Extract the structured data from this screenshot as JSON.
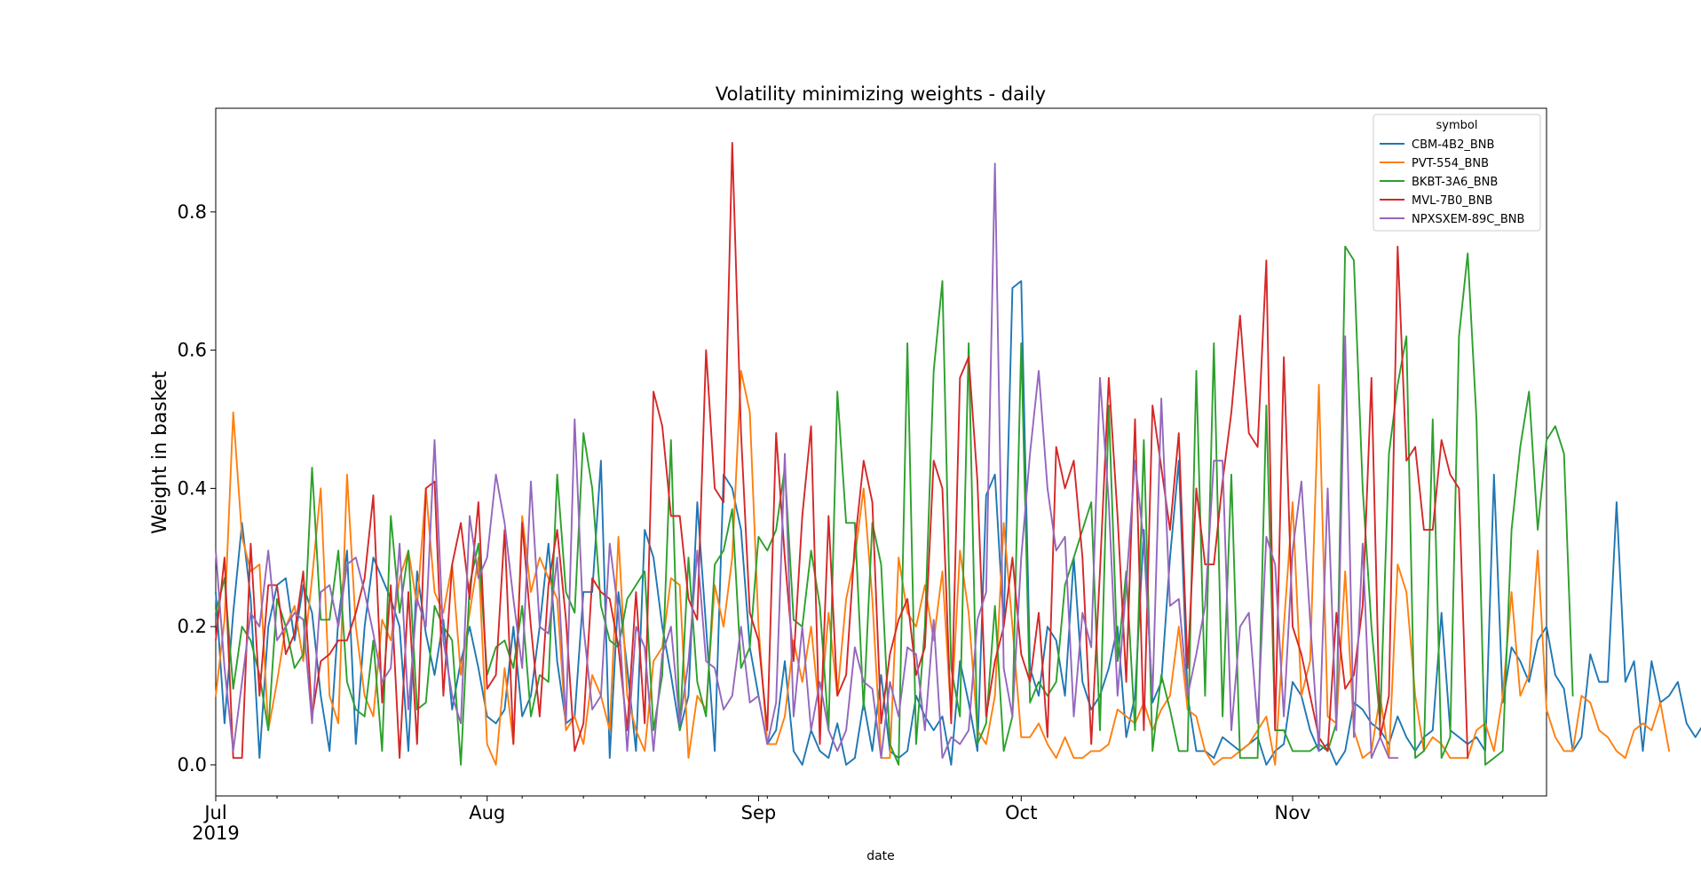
{
  "chart_data": {
    "type": "line",
    "title": "Volatility minimizing weights - daily",
    "xlabel": "date",
    "ylabel": "Weight in basket",
    "x_range": [
      "2019-07-01",
      "2019-11-30"
    ],
    "ylim": [
      -0.045,
      0.95
    ],
    "y_ticks": [
      0.0,
      0.2,
      0.4,
      0.6,
      0.8
    ],
    "y_tick_labels": [
      "0.0",
      "0.2",
      "0.4",
      "0.6",
      "0.8"
    ],
    "x_ticks": [
      "2019-07-01",
      "2019-08-01",
      "2019-09-01",
      "2019-10-01",
      "2019-11-01"
    ],
    "x_tick_labels": [
      "Jul",
      "Aug",
      "Sep",
      "Oct",
      "Nov"
    ],
    "x_tick_sublabel": "2019",
    "grid": false,
    "legend": {
      "title": "symbol",
      "placement": "top-right"
    },
    "series": [
      {
        "name": "CBM-4B2_BNB",
        "color": "#1f77b4",
        "start": "2019-07-01",
        "values": [
          0.25,
          0.06,
          0.22,
          0.35,
          0.24,
          0.01,
          0.2,
          0.26,
          0.27,
          0.18,
          0.26,
          0.22,
          0.1,
          0.02,
          0.21,
          0.31,
          0.03,
          0.2,
          0.3,
          0.27,
          0.24,
          0.2,
          0.02,
          0.28,
          0.19,
          0.13,
          0.21,
          0.08,
          0.15,
          0.2,
          0.14,
          0.07,
          0.06,
          0.08,
          0.2,
          0.07,
          0.1,
          0.2,
          0.32,
          0.15,
          0.06,
          0.07,
          0.25,
          0.25,
          0.44,
          0.01,
          0.25,
          0.14,
          0.02,
          0.34,
          0.3,
          0.2,
          0.13,
          0.05,
          0.1,
          0.38,
          0.2,
          0.02,
          0.42,
          0.4,
          0.34,
          0.17,
          0.1,
          0.03,
          0.05,
          0.15,
          0.02,
          0.0,
          0.05,
          0.02,
          0.01,
          0.06,
          0.0,
          0.01,
          0.09,
          0.02,
          0.13,
          0.02,
          0.01,
          0.02,
          0.1,
          0.07,
          0.05,
          0.07,
          0.0,
          0.15,
          0.09,
          0.02,
          0.39,
          0.42,
          0.2,
          0.69,
          0.7,
          0.14,
          0.1,
          0.2,
          0.18,
          0.1,
          0.3,
          0.12,
          0.08,
          0.1,
          0.14,
          0.2,
          0.04,
          0.1,
          0.34,
          0.09,
          0.12,
          0.3,
          0.44,
          0.1,
          0.02,
          0.02,
          0.01,
          0.04,
          0.03,
          0.02,
          0.03,
          0.04,
          0.0,
          0.02,
          0.03,
          0.12,
          0.1,
          0.05,
          0.02,
          0.03,
          0.0,
          0.02,
          0.09,
          0.08,
          0.06,
          0.05,
          0.03,
          0.07,
          0.04,
          0.02,
          0.04,
          0.05,
          0.22,
          0.05,
          0.04,
          0.03,
          0.04,
          0.02,
          0.42,
          0.09,
          0.17,
          0.15,
          0.12,
          0.18,
          0.2,
          0.13,
          0.11,
          0.02,
          0.04,
          0.16,
          0.12,
          0.12,
          0.38,
          0.12,
          0.15,
          0.02,
          0.15,
          0.09,
          0.1,
          0.12,
          0.06,
          0.04,
          0.06
        ]
      },
      {
        "name": "PVT-554_BNB",
        "color": "#ff7f0e",
        "start": "2019-07-01",
        "values": [
          0.1,
          0.21,
          0.51,
          0.33,
          0.28,
          0.29,
          0.05,
          0.12,
          0.2,
          0.23,
          0.15,
          0.27,
          0.4,
          0.1,
          0.06,
          0.42,
          0.2,
          0.1,
          0.07,
          0.21,
          0.18,
          0.27,
          0.31,
          0.23,
          0.4,
          0.25,
          0.22,
          0.29,
          0.13,
          0.22,
          0.3,
          0.03,
          0.0,
          0.14,
          0.03,
          0.36,
          0.25,
          0.3,
          0.27,
          0.24,
          0.05,
          0.07,
          0.03,
          0.13,
          0.1,
          0.05,
          0.33,
          0.1,
          0.05,
          0.02,
          0.15,
          0.17,
          0.27,
          0.26,
          0.01,
          0.1,
          0.08,
          0.26,
          0.2,
          0.3,
          0.57,
          0.51,
          0.2,
          0.03,
          0.03,
          0.07,
          0.18,
          0.12,
          0.2,
          0.07,
          0.22,
          0.1,
          0.24,
          0.3,
          0.4,
          0.24,
          0.01,
          0.01,
          0.3,
          0.22,
          0.2,
          0.26,
          0.18,
          0.28,
          0.07,
          0.31,
          0.22,
          0.05,
          0.03,
          0.1,
          0.35,
          0.2,
          0.04,
          0.04,
          0.06,
          0.03,
          0.01,
          0.04,
          0.01,
          0.01,
          0.02,
          0.02,
          0.03,
          0.08,
          0.07,
          0.06,
          0.09,
          0.05,
          0.08,
          0.1,
          0.2,
          0.08,
          0.07,
          0.02,
          0.0,
          0.01,
          0.01,
          0.02,
          0.03,
          0.05,
          0.07,
          0.0,
          0.2,
          0.38,
          0.1,
          0.15,
          0.55,
          0.07,
          0.06,
          0.28,
          0.05,
          0.01,
          0.02,
          0.1,
          0.01,
          0.29,
          0.25,
          0.1,
          0.02,
          0.04,
          0.03,
          0.01,
          0.01,
          0.01,
          0.05,
          0.06,
          0.02,
          0.1,
          0.25,
          0.1,
          0.13,
          0.31,
          0.08,
          0.04,
          0.02,
          0.02,
          0.1,
          0.09,
          0.05,
          0.04,
          0.02,
          0.01,
          0.05,
          0.06,
          0.05,
          0.09,
          0.02
        ]
      },
      {
        "name": "BKBT-3A6_BNB",
        "color": "#2ca02c",
        "start": "2019-07-01",
        "values": [
          0.22,
          0.27,
          0.11,
          0.2,
          0.18,
          0.13,
          0.05,
          0.24,
          0.2,
          0.14,
          0.16,
          0.43,
          0.21,
          0.21,
          0.31,
          0.12,
          0.08,
          0.07,
          0.18,
          0.02,
          0.36,
          0.22,
          0.31,
          0.08,
          0.09,
          0.23,
          0.2,
          0.18,
          0.0,
          0.26,
          0.32,
          0.13,
          0.17,
          0.18,
          0.14,
          0.23,
          0.07,
          0.13,
          0.12,
          0.42,
          0.25,
          0.22,
          0.48,
          0.4,
          0.23,
          0.18,
          0.17,
          0.24,
          0.26,
          0.28,
          0.05,
          0.13,
          0.47,
          0.05,
          0.3,
          0.12,
          0.07,
          0.29,
          0.31,
          0.37,
          0.14,
          0.17,
          0.33,
          0.31,
          0.34,
          0.43,
          0.21,
          0.2,
          0.31,
          0.23,
          0.05,
          0.54,
          0.35,
          0.35,
          0.08,
          0.35,
          0.29,
          0.03,
          0.0,
          0.61,
          0.03,
          0.2,
          0.57,
          0.7,
          0.14,
          0.07,
          0.61,
          0.03,
          0.06,
          0.23,
          0.02,
          0.07,
          0.61,
          0.09,
          0.12,
          0.1,
          0.12,
          0.26,
          0.3,
          0.34,
          0.38,
          0.05,
          0.52,
          0.15,
          0.28,
          0.05,
          0.47,
          0.02,
          0.13,
          0.08,
          0.02,
          0.02,
          0.57,
          0.1,
          0.61,
          0.07,
          0.42,
          0.01,
          0.01,
          0.01,
          0.52,
          0.05,
          0.05,
          0.02,
          0.02,
          0.02,
          0.03,
          0.02,
          0.06,
          0.75,
          0.73,
          0.4,
          0.2,
          0.06,
          0.45,
          0.55,
          0.62,
          0.01,
          0.02,
          0.5,
          0.01,
          0.04,
          0.62,
          0.74,
          0.5,
          0.0,
          0.01,
          0.02,
          0.34,
          0.46,
          0.54,
          0.34,
          0.47,
          0.49,
          0.45,
          0.1
        ]
      },
      {
        "name": "MVL-7B0_BNB",
        "color": "#d62728",
        "start": "2019-07-01",
        "values": [
          0.18,
          0.3,
          0.01,
          0.01,
          0.32,
          0.1,
          0.26,
          0.26,
          0.16,
          0.19,
          0.28,
          0.07,
          0.15,
          0.16,
          0.18,
          0.18,
          0.22,
          0.27,
          0.39,
          0.09,
          0.26,
          0.01,
          0.25,
          0.03,
          0.4,
          0.41,
          0.1,
          0.29,
          0.35,
          0.24,
          0.38,
          0.11,
          0.13,
          0.34,
          0.03,
          0.35,
          0.2,
          0.07,
          0.26,
          0.34,
          0.21,
          0.02,
          0.06,
          0.27,
          0.25,
          0.24,
          0.17,
          0.05,
          0.25,
          0.06,
          0.54,
          0.49,
          0.36,
          0.36,
          0.24,
          0.21,
          0.6,
          0.4,
          0.38,
          0.9,
          0.48,
          0.22,
          0.18,
          0.05,
          0.48,
          0.3,
          0.15,
          0.36,
          0.49,
          0.03,
          0.36,
          0.1,
          0.13,
          0.32,
          0.44,
          0.38,
          0.06,
          0.16,
          0.21,
          0.24,
          0.13,
          0.17,
          0.44,
          0.4,
          0.06,
          0.56,
          0.59,
          0.41,
          0.07,
          0.15,
          0.2,
          0.3,
          0.16,
          0.12,
          0.22,
          0.04,
          0.46,
          0.4,
          0.44,
          0.3,
          0.03,
          0.28,
          0.56,
          0.36,
          0.12,
          0.5,
          0.05,
          0.52,
          0.43,
          0.34,
          0.48,
          0.14,
          0.4,
          0.29,
          0.29,
          0.41,
          0.51,
          0.65,
          0.48,
          0.46,
          0.73,
          0.05,
          0.59,
          0.2,
          0.16,
          0.1,
          0.04,
          0.02,
          0.22,
          0.11,
          0.13,
          0.23,
          0.56,
          0.04,
          0.1,
          0.75,
          0.44,
          0.46,
          0.34,
          0.34,
          0.47,
          0.42,
          0.4,
          0.01
        ]
      },
      {
        "name": "NPXSXEM-89C_BNB",
        "color": "#9467bd",
        "start": "2019-07-01",
        "values": [
          0.31,
          0.14,
          0.02,
          0.12,
          0.22,
          0.2,
          0.31,
          0.18,
          0.2,
          0.22,
          0.21,
          0.06,
          0.25,
          0.26,
          0.2,
          0.29,
          0.3,
          0.25,
          0.19,
          0.12,
          0.14,
          0.32,
          0.08,
          0.24,
          0.2,
          0.47,
          0.18,
          0.1,
          0.06,
          0.36,
          0.27,
          0.3,
          0.42,
          0.35,
          0.24,
          0.14,
          0.41,
          0.2,
          0.19,
          0.3,
          0.06,
          0.5,
          0.2,
          0.08,
          0.1,
          0.32,
          0.22,
          0.02,
          0.2,
          0.17,
          0.02,
          0.16,
          0.2,
          0.06,
          0.15,
          0.31,
          0.15,
          0.14,
          0.08,
          0.1,
          0.2,
          0.09,
          0.1,
          0.03,
          0.09,
          0.45,
          0.07,
          0.2,
          0.05,
          0.12,
          0.05,
          0.02,
          0.05,
          0.17,
          0.12,
          0.11,
          0.01,
          0.12,
          0.07,
          0.17,
          0.16,
          0.05,
          0.21,
          0.01,
          0.04,
          0.03,
          0.05,
          0.21,
          0.25,
          0.87,
          0.14,
          0.07,
          0.3,
          0.45,
          0.57,
          0.4,
          0.31,
          0.33,
          0.07,
          0.22,
          0.17,
          0.56,
          0.38,
          0.1,
          0.26,
          0.44,
          0.32,
          0.1,
          0.53,
          0.23,
          0.24,
          0.1,
          0.16,
          0.23,
          0.44,
          0.44,
          0.05,
          0.2,
          0.22,
          0.06,
          0.33,
          0.29,
          0.07,
          0.31,
          0.41,
          0.21,
          0.02,
          0.4,
          0.05,
          0.62,
          0.04,
          0.32,
          0.01,
          0.04,
          0.01,
          0.01
        ]
      }
    ]
  }
}
